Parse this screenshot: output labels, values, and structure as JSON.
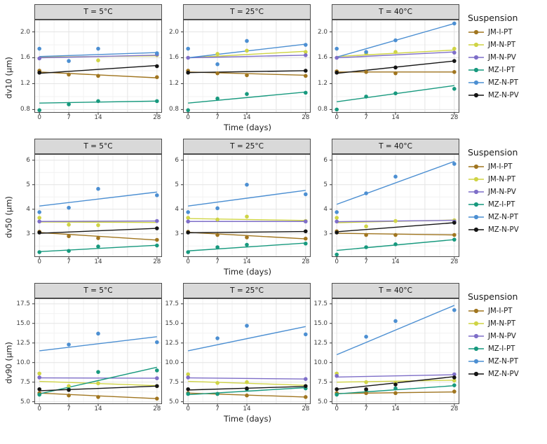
{
  "chart_data": {
    "type": "scatter",
    "title": "",
    "xlabel": "Time (days)",
    "x": [
      0,
      7,
      14,
      28
    ],
    "xlim": [
      -1.2,
      29.2
    ],
    "x_ticks": [
      0,
      7,
      14,
      28
    ],
    "x_grid_major": [
      0,
      7,
      14,
      21,
      28
    ],
    "x_grid_minor": [
      3.5,
      10.5,
      17.5,
      24.5
    ],
    "grid": true,
    "legend_position": "right",
    "legend_title": "Suspension",
    "facet_titles": [
      "T = 5°C",
      "T = 25°C",
      "T = 40°C"
    ],
    "series": [
      {
        "name": "JM-I-PT",
        "color": "#A0751F"
      },
      {
        "name": "JM-N-PT",
        "color": "#CFD445"
      },
      {
        "name": "JM-N-PV",
        "color": "#7E6EC8"
      },
      {
        "name": "MZ-I-PT",
        "color": "#17997E"
      },
      {
        "name": "MZ-N-PT",
        "color": "#4C8FD2"
      },
      {
        "name": "MZ-N-PV",
        "color": "#141414"
      }
    ],
    "rows": [
      {
        "ylabel": "dv10 (μm)",
        "ylim": [
          0.75,
          2.19
        ],
        "yticks": [
          0.8,
          1.2,
          1.6,
          2.0
        ],
        "ytick_labels": [
          "0.8",
          "1.2",
          "1.6",
          "2.0"
        ],
        "yminor": [
          1.0,
          1.4,
          1.8
        ],
        "panels": [
          {
            "facet": "T = 5°C",
            "points": {
              "JM-I-PT": [
                1.4,
                1.34,
                1.32,
                1.3
              ],
              "JM-N-PT": [
                null,
                null,
                1.56,
                1.64
              ],
              "JM-N-PV": [
                1.59,
                null,
                null,
                1.65
              ],
              "MZ-I-PT": [
                0.79,
                0.88,
                0.93,
                0.93
              ],
              "MZ-N-PT": [
                1.74,
                1.55,
                1.74,
                1.67
              ],
              "MZ-N-PV": [
                1.37,
                null,
                null,
                1.47
              ]
            },
            "trend": {
              "JM-I-PT": [
                1.38,
                1.29
              ],
              "JM-N-PT": [
                1.61,
                1.63
              ],
              "JM-N-PV": [
                1.6,
                1.64
              ],
              "MZ-I-PT": [
                0.9,
                0.93
              ],
              "MZ-N-PT": [
                1.62,
                1.68
              ],
              "MZ-N-PV": [
                1.36,
                1.48
              ]
            }
          },
          {
            "facet": "T = 25°C",
            "points": {
              "JM-I-PT": [
                1.4,
                1.36,
                1.33,
                1.32
              ],
              "JM-N-PT": [
                null,
                1.66,
                1.71,
                1.69
              ],
              "JM-N-PV": [
                1.6,
                null,
                null,
                1.64
              ],
              "MZ-I-PT": [
                0.79,
                0.97,
                1.04,
                1.06
              ],
              "MZ-N-PT": [
                1.74,
                1.5,
                1.86,
                1.8
              ],
              "MZ-N-PV": [
                1.37,
                null,
                null,
                1.4
              ]
            },
            "trend": {
              "JM-I-PT": [
                1.38,
                1.33
              ],
              "JM-N-PT": [
                1.6,
                1.7
              ],
              "JM-N-PV": [
                1.6,
                1.64
              ],
              "MZ-I-PT": [
                0.9,
                1.07
              ],
              "MZ-N-PT": [
                1.6,
                1.81
              ],
              "MZ-N-PV": [
                1.37,
                1.4
              ]
            }
          },
          {
            "facet": "T = 40°C",
            "points": {
              "JM-I-PT": [
                1.39,
                1.38,
                1.36,
                1.38
              ],
              "JM-N-PT": [
                null,
                1.67,
                1.69,
                1.74
              ],
              "JM-N-PV": [
                1.6,
                null,
                null,
                1.68
              ],
              "MZ-I-PT": [
                0.8,
                1.0,
                1.05,
                1.12
              ],
              "MZ-N-PT": [
                1.74,
                1.69,
                1.87,
                2.13
              ],
              "MZ-N-PV": [
                1.37,
                null,
                1.45,
                1.55
              ]
            },
            "trend": {
              "JM-I-PT": [
                1.38,
                1.38
              ],
              "JM-N-PT": [
                1.62,
                1.72
              ],
              "JM-N-PV": [
                1.6,
                1.69
              ],
              "MZ-I-PT": [
                0.92,
                1.17
              ],
              "MZ-N-PT": [
                1.61,
                2.13
              ],
              "MZ-N-PV": [
                1.36,
                1.55
              ]
            }
          }
        ]
      },
      {
        "ylabel": "dv50 (μm)",
        "ylim": [
          2.05,
          6.25
        ],
        "yticks": [
          3,
          4,
          5,
          6
        ],
        "ytick_labels": [
          "3",
          "4",
          "5",
          "6"
        ],
        "yminor": [
          2.5,
          3.5,
          4.5,
          5.5
        ],
        "panels": [
          {
            "facet": "T = 5°C",
            "points": {
              "JM-I-PT": [
                3.08,
                2.9,
                2.82,
                2.75
              ],
              "JM-N-PT": [
                3.65,
                3.37,
                3.35,
                null
              ],
              "JM-N-PV": [
                3.5,
                null,
                null,
                3.52
              ],
              "MZ-I-PT": [
                2.25,
                2.3,
                2.48,
                2.52
              ],
              "MZ-N-PT": [
                3.88,
                4.06,
                4.83,
                4.57
              ],
              "MZ-N-PV": [
                3.05,
                null,
                null,
                3.22
              ]
            },
            "trend": {
              "JM-I-PT": [
                3.05,
                2.74
              ],
              "JM-N-PT": [
                3.48,
                3.46
              ],
              "JM-N-PV": [
                3.5,
                3.52
              ],
              "MZ-I-PT": [
                2.27,
                2.53
              ],
              "MZ-N-PT": [
                4.13,
                4.7
              ],
              "MZ-N-PV": [
                3.02,
                3.22
              ]
            }
          },
          {
            "facet": "T = 25°C",
            "points": {
              "JM-I-PT": [
                3.08,
                2.95,
                2.85,
                2.8
              ],
              "JM-N-PT": [
                3.65,
                3.58,
                3.7,
                3.52
              ],
              "JM-N-PV": [
                3.5,
                null,
                null,
                3.5
              ],
              "MZ-I-PT": [
                2.25,
                2.45,
                2.55,
                2.6
              ],
              "MZ-N-PT": [
                3.88,
                4.04,
                5.0,
                4.61
              ],
              "MZ-N-PV": [
                3.05,
                null,
                null,
                3.1
              ]
            },
            "trend": {
              "JM-I-PT": [
                3.06,
                2.79
              ],
              "JM-N-PT": [
                3.62,
                3.54
              ],
              "JM-N-PV": [
                3.5,
                3.5
              ],
              "MZ-I-PT": [
                2.3,
                2.62
              ],
              "MZ-N-PT": [
                4.13,
                4.77
              ],
              "MZ-N-PV": [
                3.04,
                3.09
              ]
            }
          },
          {
            "facet": "T = 40°C",
            "points": {
              "JM-I-PT": [
                3.1,
                2.95,
                2.95,
                2.95
              ],
              "JM-N-PT": [
                3.65,
                3.3,
                3.52,
                3.55
              ],
              "JM-N-PV": [
                3.5,
                null,
                null,
                3.5
              ],
              "MZ-I-PT": [
                2.15,
                2.45,
                2.57,
                2.76
              ],
              "MZ-N-PT": [
                3.88,
                4.65,
                5.33,
                5.85
              ],
              "MZ-N-PV": [
                3.05,
                null,
                null,
                3.45
              ]
            },
            "trend": {
              "JM-I-PT": [
                3.02,
                2.95
              ],
              "JM-N-PT": [
                3.45,
                3.56
              ],
              "JM-N-PV": [
                3.49,
                3.55
              ],
              "MZ-I-PT": [
                2.32,
                2.76
              ],
              "MZ-N-PT": [
                4.2,
                5.95
              ],
              "MZ-N-PV": [
                3.08,
                3.45
              ]
            }
          }
        ]
      },
      {
        "ylabel": "dv90 (μm)",
        "ylim": [
          4.7,
          18.2
        ],
        "yticks": [
          5.0,
          7.5,
          10.0,
          12.5,
          15.0,
          17.5
        ],
        "ytick_labels": [
          "5.0",
          "7.5",
          "10.0",
          "12.5",
          "15.0",
          "17.5"
        ],
        "yminor": [
          6.25,
          8.75,
          11.25,
          13.75,
          16.25
        ],
        "panels": [
          {
            "facet": "T = 5°C",
            "points": {
              "JM-I-PT": [
                6.1,
                5.8,
                5.6,
                5.4
              ],
              "JM-N-PT": [
                8.6,
                7.0,
                7.35,
                7.0
              ],
              "JM-N-PV": [
                8.1,
                null,
                null,
                8.0
              ],
              "MZ-I-PT": [
                5.9,
                6.6,
                8.8,
                9.0
              ],
              "MZ-N-PT": [
                null,
                12.3,
                13.7,
                12.6
              ],
              "MZ-N-PV": [
                6.6,
                6.5,
                null,
                7.0
              ]
            },
            "trend": {
              "JM-I-PT": [
                6.1,
                5.4
              ],
              "JM-N-PT": [
                7.6,
                7.05
              ],
              "JM-N-PV": [
                8.05,
                8.0
              ],
              "MZ-I-PT": [
                6.0,
                9.4
              ],
              "MZ-N-PT": [
                11.5,
                13.3
              ],
              "MZ-N-PV": [
                6.4,
                7.0
              ]
            }
          },
          {
            "facet": "T = 25°C",
            "points": {
              "JM-I-PT": [
                6.1,
                6.0,
                5.8,
                5.6
              ],
              "JM-N-PT": [
                8.5,
                7.4,
                7.5,
                7.0
              ],
              "JM-N-PV": [
                8.1,
                null,
                null,
                7.9
              ],
              "MZ-I-PT": [
                6.0,
                6.0,
                6.6,
                6.7
              ],
              "MZ-N-PT": [
                null,
                13.1,
                14.7,
                13.6
              ],
              "MZ-N-PV": [
                6.6,
                null,
                6.7,
                7.0
              ]
            },
            "trend": {
              "JM-I-PT": [
                6.1,
                5.6
              ],
              "JM-N-PT": [
                7.6,
                7.1
              ],
              "JM-N-PV": [
                8.05,
                7.9
              ],
              "MZ-I-PT": [
                5.9,
                6.8
              ],
              "MZ-N-PT": [
                11.5,
                14.6
              ],
              "MZ-N-PV": [
                6.5,
                6.95
              ]
            }
          },
          {
            "facet": "T = 40°C",
            "points": {
              "JM-I-PT": [
                6.1,
                6.1,
                6.1,
                6.3
              ],
              "JM-N-PT": [
                8.6,
                7.5,
                7.4,
                7.7
              ],
              "JM-N-PV": [
                8.3,
                null,
                null,
                8.5
              ],
              "MZ-I-PT": [
                5.9,
                6.5,
                6.7,
                7.1
              ],
              "MZ-N-PT": [
                null,
                13.3,
                15.3,
                16.7
              ],
              "MZ-N-PV": [
                6.6,
                6.6,
                7.2,
                8.1
              ]
            },
            "trend": {
              "JM-I-PT": [
                6.05,
                6.25
              ],
              "JM-N-PT": [
                7.5,
                7.75
              ],
              "JM-N-PV": [
                8.15,
                8.45
              ],
              "MZ-I-PT": [
                6.0,
                7.05
              ],
              "MZ-N-PT": [
                11.0,
                17.3
              ],
              "MZ-N-PV": [
                6.6,
                8.2
              ]
            }
          }
        ]
      }
    ]
  },
  "style": {
    "panel_border": "#4d4d4d",
    "strip_background": "#d9d9d9",
    "grid_major": "#e4e4e4",
    "grid_minor": "#f2f2f2",
    "tick_color": "#333333"
  }
}
